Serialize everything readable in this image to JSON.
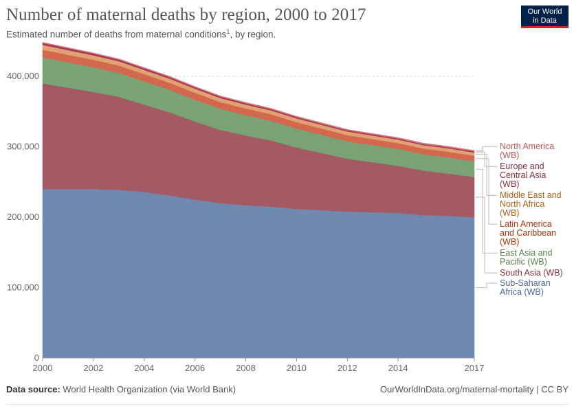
{
  "header": {
    "title": "Number of maternal deaths by region, 2000 to 2017",
    "subtitle": "Estimated number of deaths from maternal conditions",
    "subtitle_sup": "1",
    "subtitle_tail": ", by region."
  },
  "logo": {
    "line1": "Our World",
    "line2": "in Data"
  },
  "footer": {
    "source_label": "Data source:",
    "source_text": "World Health Organization (via World Bank)",
    "url": "OurWorldInData.org/maternal-mortality | CC BY"
  },
  "chart_data": {
    "type": "area",
    "stacked": true,
    "x": [
      2000,
      2001,
      2002,
      2003,
      2004,
      2005,
      2006,
      2007,
      2008,
      2009,
      2010,
      2011,
      2012,
      2013,
      2014,
      2015,
      2016,
      2017
    ],
    "xticks": [
      2000,
      2002,
      2004,
      2006,
      2008,
      2010,
      2012,
      2014,
      2017
    ],
    "yticks": [
      0,
      100000,
      200000,
      300000,
      400000
    ],
    "ytick_labels": [
      "0",
      "100,000",
      "200,000",
      "300,000",
      "400,000"
    ],
    "xticklabels": [
      "2000",
      "2002",
      "2004",
      "2006",
      "2008",
      "2010",
      "2012",
      "2014",
      "2017"
    ],
    "ylim": [
      0,
      450000
    ],
    "grid": "horizontal dashed",
    "legend": "right, labels at line ends",
    "series": [
      {
        "name": "Sub-Saharan Africa (WB)",
        "label_lines": [
          "Sub-Saharan",
          "Africa (WB)"
        ],
        "color": "#6d86ad",
        "label_color": "#4c6a9c",
        "values": [
          240000,
          240000,
          240000,
          239000,
          236000,
          231000,
          225000,
          220000,
          217000,
          215000,
          212000,
          210000,
          208000,
          207000,
          206000,
          203000,
          202000,
          200000
        ]
      },
      {
        "name": "South Asia (WB)",
        "label_lines": [
          "South Asia (WB)"
        ],
        "color": "#a2555f",
        "label_color": "#883039",
        "values": [
          150000,
          144000,
          138000,
          132000,
          124000,
          118000,
          111000,
          104000,
          99000,
          94000,
          87000,
          81000,
          75000,
          71000,
          67000,
          63000,
          60000,
          57000
        ]
      },
      {
        "name": "East Asia and Pacific (WB)",
        "label_lines": [
          "East Asia and",
          "Pacific (WB)"
        ],
        "color": "#76a171",
        "label_color": "#578145",
        "values": [
          37000,
          36000,
          35000,
          34000,
          33000,
          32000,
          31000,
          30000,
          29000,
          28000,
          27000,
          26000,
          25000,
          24500,
          24000,
          23500,
          23000,
          22500
        ]
      },
      {
        "name": "Latin America and Caribbean (WB)",
        "label_lines": [
          "Latin America",
          "and Caribbean",
          "(WB)"
        ],
        "color": "#d26449",
        "label_color": "#b13507",
        "values": [
          11000,
          10800,
          10600,
          10400,
          10200,
          10000,
          9800,
          9600,
          9400,
          9200,
          9000,
          8800,
          8600,
          8400,
          8200,
          8000,
          7900,
          7800
        ]
      },
      {
        "name": "Middle East and North Africa (WB)",
        "label_lines": [
          "Middle East and",
          "North Africa",
          "(WB)"
        ],
        "color": "#e0a16c",
        "label_color": "#b16214",
        "values": [
          6800,
          6600,
          6400,
          6200,
          6000,
          5900,
          5800,
          5700,
          5600,
          5500,
          5400,
          5300,
          5200,
          5100,
          5000,
          4900,
          4800,
          4700
        ]
      },
      {
        "name": "Europe and Central Asia (WB)",
        "label_lines": [
          "Europe and",
          "Central Asia",
          "(WB)"
        ],
        "color": "#9e3058",
        "label_color": "#883039",
        "values": [
          2500,
          2400,
          2300,
          2200,
          2100,
          2000,
          1900,
          1800,
          1800,
          1700,
          1700,
          1600,
          1600,
          1500,
          1500,
          1400,
          1400,
          1400
        ]
      },
      {
        "name": "North America (WB)",
        "label_lines": [
          "North America",
          "(WB)"
        ],
        "color": "#d9706f",
        "label_color": "#c05551",
        "values": [
          1200,
          1200,
          1200,
          1200,
          1300,
          1300,
          1300,
          1300,
          1300,
          1300,
          1400,
          1400,
          1400,
          1400,
          1400,
          1500,
          1500,
          1500
        ]
      }
    ]
  }
}
